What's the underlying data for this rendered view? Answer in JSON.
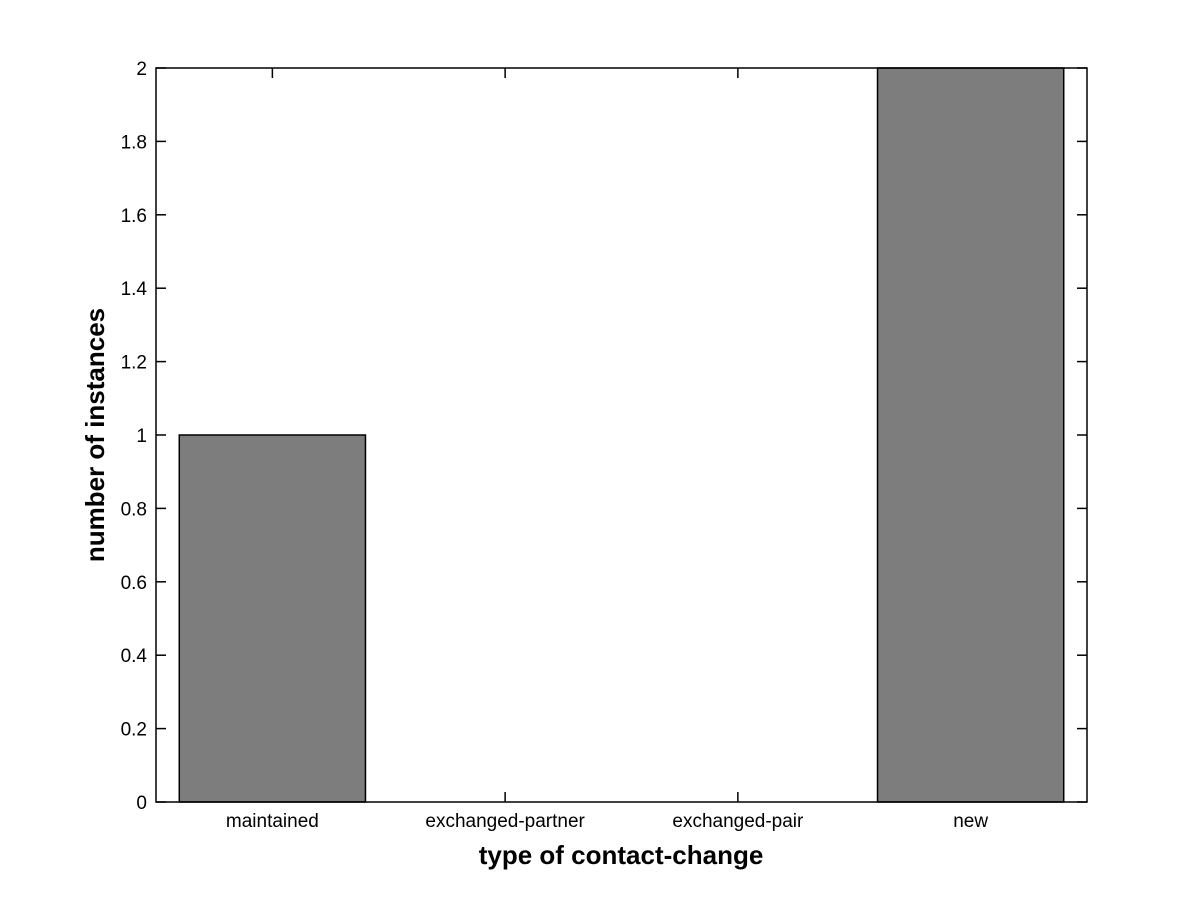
{
  "figure": {
    "background": "#ffffff"
  },
  "chart_data": {
    "type": "bar",
    "categories": [
      "maintained",
      "exchanged-partner",
      "exchanged-pair",
      "new"
    ],
    "values": [
      1,
      0,
      0,
      2
    ],
    "xlabel": "type of contact-change",
    "ylabel": "number of instances",
    "ylim": [
      0,
      2
    ],
    "yticks": [
      0,
      0.2,
      0.4,
      0.6,
      0.8,
      1,
      1.2,
      1.4,
      1.6,
      1.8,
      2
    ],
    "ytick_labels": [
      "0",
      "0.2",
      "0.4",
      "0.6",
      "0.8",
      "1",
      "1.2",
      "1.4",
      "1.6",
      "1.8",
      "2"
    ],
    "grid": false,
    "legend": null,
    "bar_fill": "#7d7d7d",
    "bar_edge": "#000000",
    "axis_color": "#000000",
    "bar_width_fraction": 0.8,
    "tick_direction": "in"
  }
}
